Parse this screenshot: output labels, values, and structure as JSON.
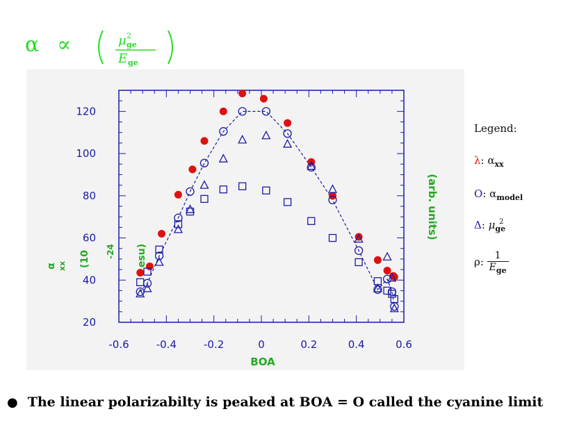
{
  "formula": {
    "alpha": "α",
    "propto": "∝",
    "numerator": "μ",
    "numerator_sub": "ge",
    "numerator_sup": "2",
    "denominator": "E",
    "denominator_sub": "ge",
    "colors": {
      "formula": "#22dd22"
    }
  },
  "chart_data": {
    "type": "scatter",
    "xlabel": "BOA",
    "ylabel_left": "α",
    "ylabel_left_sub": "xx",
    "ylabel_left_unit": "(10",
    "ylabel_left_exp": "-24",
    "ylabel_left_unit_end": "esu)",
    "ylabel_right": "(arb. units)",
    "xlim": [
      -0.6,
      0.6
    ],
    "ylim": [
      20,
      130
    ],
    "xticks": [
      "-0.6",
      "-0.4",
      "-0.2",
      "0",
      "0.2",
      "0.4",
      "0.6"
    ],
    "yticks": [
      "20",
      "40",
      "60",
      "80",
      "100",
      "120"
    ],
    "colors": {
      "axes": "#1a1aa8",
      "tick_labels": "#1a1aa8",
      "axis_title": "#22aa22",
      "alpha_xx": "#dd1111",
      "model": "#1a1aa8"
    },
    "series": [
      {
        "name": "α_xx",
        "marker": "filled-circle",
        "points": [
          [
            -0.51,
            43.5
          ],
          [
            -0.47,
            46.5
          ],
          [
            -0.42,
            62
          ],
          [
            -0.35,
            80.5
          ],
          [
            -0.29,
            92.5
          ],
          [
            -0.24,
            106
          ],
          [
            -0.16,
            120
          ],
          [
            -0.08,
            128.5
          ],
          [
            0.01,
            126
          ],
          [
            0.11,
            114.5
          ],
          [
            0.21,
            96
          ],
          [
            0.3,
            80
          ],
          [
            0.41,
            60.5
          ],
          [
            0.49,
            49.5
          ],
          [
            0.53,
            44.5
          ],
          [
            0.555,
            42
          ],
          [
            0.56,
            41.5
          ]
        ]
      },
      {
        "name": "α_model",
        "marker": "open-circle",
        "line": "dashed",
        "points": [
          [
            -0.51,
            34.5
          ],
          [
            -0.48,
            38.5
          ],
          [
            -0.43,
            51.5
          ],
          [
            -0.35,
            69.5
          ],
          [
            -0.3,
            82
          ],
          [
            -0.24,
            95.5
          ],
          [
            -0.16,
            110.5
          ],
          [
            -0.08,
            120
          ],
          [
            0.02,
            120
          ],
          [
            0.11,
            109.5
          ],
          [
            0.21,
            93.5
          ],
          [
            0.3,
            78
          ],
          [
            0.41,
            54
          ],
          [
            0.49,
            35.5
          ],
          [
            0.53,
            40.5
          ],
          [
            0.55,
            34.5
          ],
          [
            0.56,
            27.5
          ]
        ]
      },
      {
        "name": "μ²_ge",
        "marker": "open-triangle",
        "points": [
          [
            -0.51,
            33.5
          ],
          [
            -0.48,
            36
          ],
          [
            -0.43,
            48.5
          ],
          [
            -0.35,
            64
          ],
          [
            -0.3,
            73.5
          ],
          [
            -0.24,
            85
          ],
          [
            -0.16,
            97.5
          ],
          [
            -0.08,
            106.5
          ],
          [
            0.02,
            108.5
          ],
          [
            0.11,
            104.5
          ],
          [
            0.21,
            94
          ],
          [
            0.3,
            83
          ],
          [
            0.41,
            59.5
          ],
          [
            0.49,
            36
          ],
          [
            0.53,
            51
          ],
          [
            0.55,
            41
          ],
          [
            0.56,
            26.5
          ]
        ]
      },
      {
        "name": "1/E_ge",
        "marker": "open-square",
        "points": [
          [
            -0.51,
            39
          ],
          [
            -0.48,
            44
          ],
          [
            -0.43,
            54.5
          ],
          [
            -0.35,
            66.5
          ],
          [
            -0.3,
            72.5
          ],
          [
            -0.24,
            78.5
          ],
          [
            -0.16,
            83
          ],
          [
            -0.08,
            84.5
          ],
          [
            0.02,
            82.5
          ],
          [
            0.11,
            77
          ],
          [
            0.21,
            68
          ],
          [
            0.3,
            60
          ],
          [
            0.41,
            48.5
          ],
          [
            0.49,
            39.5
          ],
          [
            0.53,
            35
          ],
          [
            0.55,
            33.5
          ],
          [
            0.56,
            31
          ]
        ]
      }
    ]
  },
  "legend": {
    "title": "Legend:",
    "entries": [
      {
        "symbol": "λ",
        "label": "α",
        "label_sub": "xx",
        "color": "#dd1111"
      },
      {
        "symbol": "O",
        "label": "α",
        "label_sub": "model",
        "color": "#1a1aa8"
      },
      {
        "symbol": "Δ",
        "label": "μ",
        "label_sub": "ge",
        "label_sup": "2",
        "color": "#1a1aa8"
      },
      {
        "symbol": "ρ",
        "frac_num": "1",
        "frac_den": "E",
        "frac_den_sub": "ge",
        "color": "#111111"
      }
    ]
  },
  "bullet": {
    "text": "The linear polarizabilty is peaked at BOA = O called the cyanine limit"
  }
}
